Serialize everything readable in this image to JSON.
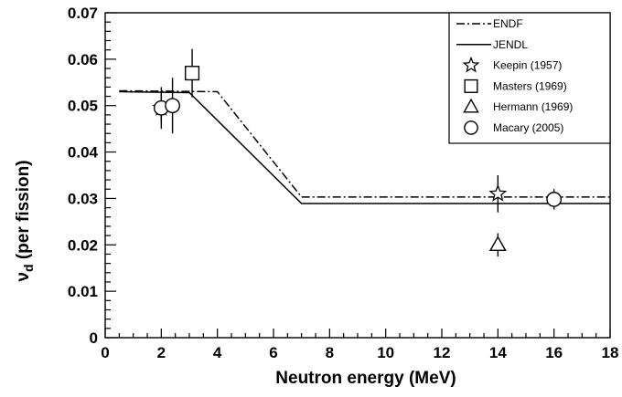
{
  "chart_data": {
    "type": "line",
    "title": "",
    "xlabel": "Neutron energy (MeV)",
    "ylabel_parts": {
      "symbol": "ν",
      "subscript": "d",
      "rest": " (per fission)"
    },
    "xlim": [
      0,
      18
    ],
    "ylim": [
      0,
      0.07
    ],
    "xticks": [
      0,
      2,
      4,
      6,
      8,
      10,
      12,
      14,
      16,
      18
    ],
    "yticks": [
      0,
      0.01,
      0.02,
      0.03,
      0.04,
      0.05,
      0.06,
      0.07
    ],
    "ytick_labels": [
      "0",
      "0.01",
      "0.02",
      "0.03",
      "0.04",
      "0.05",
      "0.06",
      "0.07"
    ],
    "grid": false,
    "legend_position": "top-right",
    "series": [
      {
        "name": "ENDF",
        "kind": "line",
        "style": "dash-dot",
        "points": [
          [
            0.5,
            0.0532
          ],
          [
            4.0,
            0.053
          ],
          [
            7.0,
            0.0303
          ],
          [
            18.0,
            0.0303
          ]
        ]
      },
      {
        "name": "JENDL",
        "kind": "line",
        "style": "solid",
        "points": [
          [
            0.5,
            0.053
          ],
          [
            3.0,
            0.0528
          ],
          [
            7.0,
            0.0289
          ],
          [
            18.0,
            0.0289
          ]
        ]
      },
      {
        "name": "Keepin (1957)",
        "kind": "points",
        "marker": "star",
        "points": [
          {
            "x": 2.0,
            "y": 0.0495,
            "yerr": 0.0045
          },
          {
            "x": 14.0,
            "y": 0.031,
            "yerr": 0.004
          }
        ]
      },
      {
        "name": "Masters (1969)",
        "kind": "points",
        "marker": "square",
        "points": [
          {
            "x": 3.1,
            "y": 0.057,
            "yerr": 0.0052
          }
        ]
      },
      {
        "name": "Hermann (1969)",
        "kind": "points",
        "marker": "triangle",
        "points": [
          {
            "x": 14.0,
            "y": 0.02,
            "yerr": 0.0025
          }
        ]
      },
      {
        "name": "Macary (2005)",
        "kind": "points",
        "marker": "circle",
        "points": [
          {
            "x": 2.0,
            "y": 0.0495,
            "yerr": 0.003
          },
          {
            "x": 2.4,
            "y": 0.05,
            "yerr": 0.006
          },
          {
            "x": 16.0,
            "y": 0.0298,
            "yerr": 0.0022
          }
        ]
      }
    ]
  }
}
